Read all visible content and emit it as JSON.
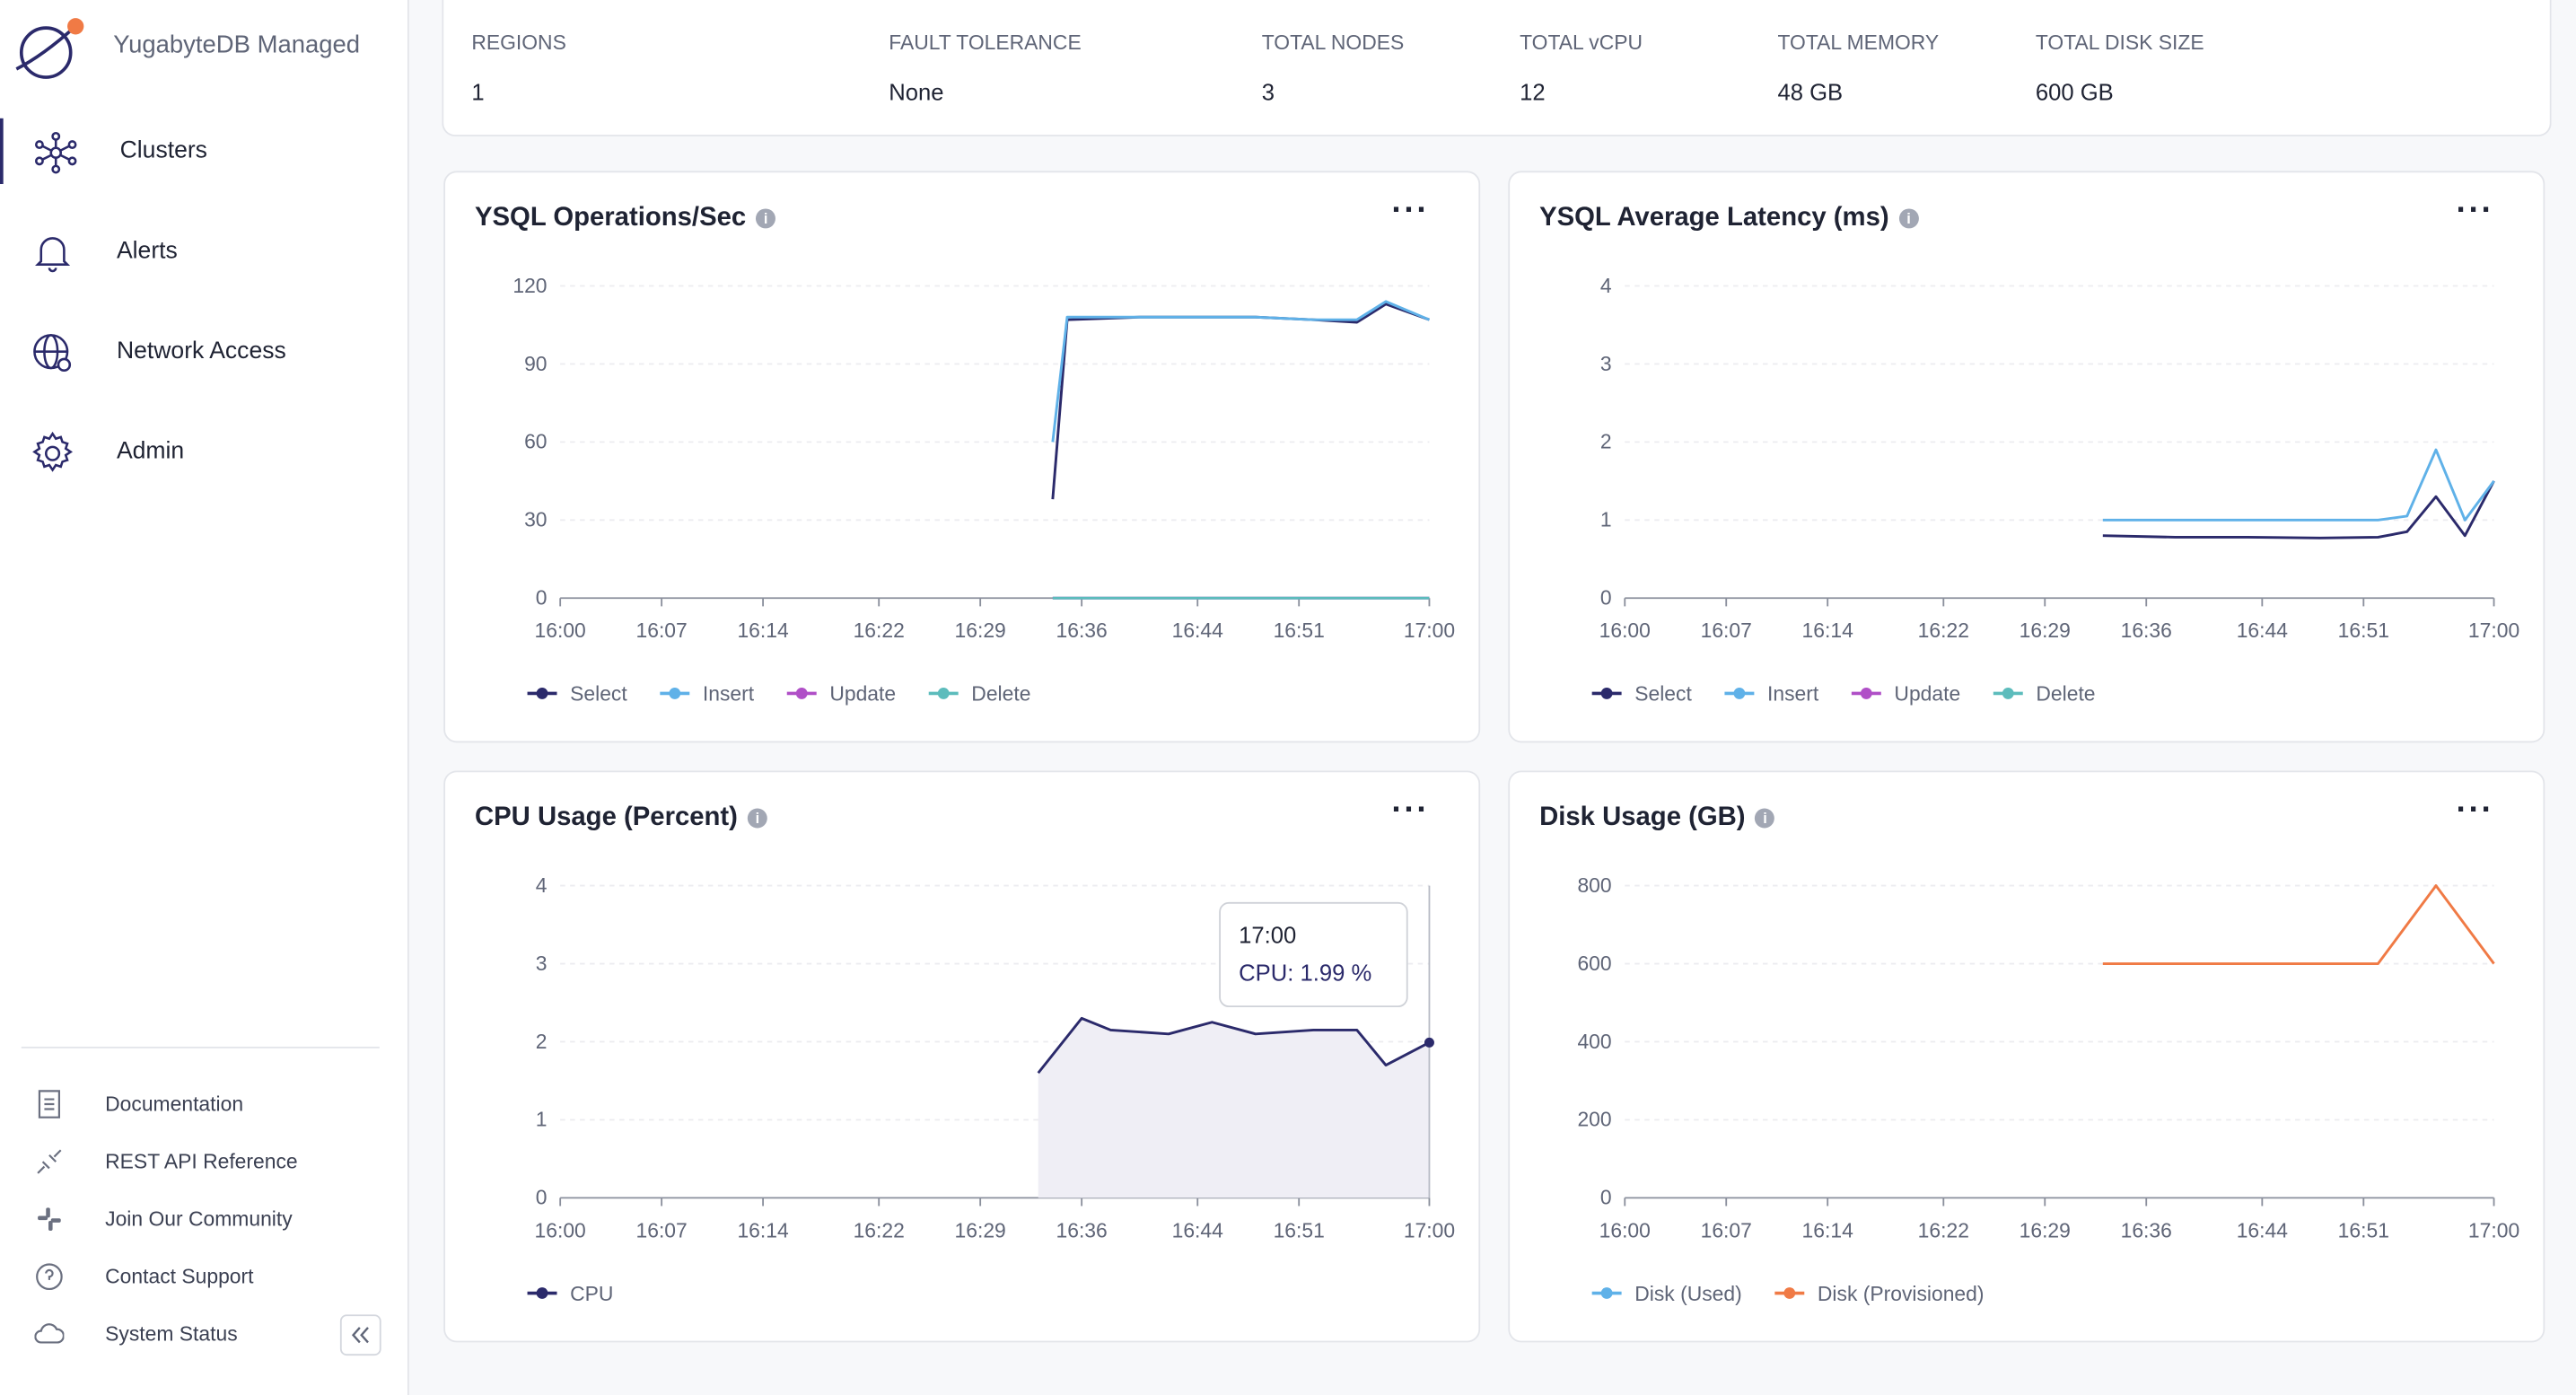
{
  "sidebar": {
    "brand": "YugabyteDB Managed",
    "nav": [
      "Clusters",
      "Alerts",
      "Network Access",
      "Admin"
    ],
    "links": [
      "Documentation",
      "REST API Reference",
      "Join Our Community",
      "Contact Support",
      "System Status"
    ]
  },
  "summary": [
    {
      "label": "REGIONS",
      "value": 1
    },
    {
      "label": "FAULT TOLERANCE",
      "value": "None"
    },
    {
      "label": "TOTAL NODES",
      "value": 3
    },
    {
      "label": "TOTAL vCPU",
      "value": 12
    },
    {
      "label": "TOTAL MEMORY",
      "value": "48 GB"
    },
    {
      "label": "TOTAL DISK SIZE",
      "value": "600 GB"
    }
  ],
  "chart_data": [
    {
      "type": "line",
      "title": "YSQL Operations/Sec",
      "x": [
        "16:34",
        "16:35",
        "16:40",
        "16:44",
        "16:48",
        "16:52",
        "16:55",
        "16:57",
        "17:00"
      ],
      "series": [
        {
          "name": "Select",
          "color": "#2b2a6b",
          "values": [
            38,
            107,
            108,
            108,
            108,
            107,
            106,
            113,
            107
          ]
        },
        {
          "name": "Insert",
          "color": "#5fb1e8",
          "values": [
            60,
            108,
            108,
            108,
            108,
            107,
            107,
            114,
            107
          ]
        },
        {
          "name": "Update",
          "color": "#b04fc7",
          "values": [
            0,
            0,
            0,
            0,
            0,
            0,
            0,
            0,
            0
          ]
        },
        {
          "name": "Delete",
          "color": "#5cbcbc",
          "values": [
            0,
            0,
            0,
            0,
            0,
            0,
            0,
            0,
            0
          ]
        }
      ],
      "xlim": [
        "16:00",
        "17:00"
      ],
      "xticks": [
        "16:00",
        "16:07",
        "16:14",
        "16:22",
        "16:29",
        "16:36",
        "16:44",
        "16:51",
        "17:00"
      ],
      "ylim": [
        0,
        120
      ],
      "yticks": [
        0,
        30,
        60,
        90,
        120
      ],
      "grid": true,
      "legend": "bottom"
    },
    {
      "type": "line",
      "title": "YSQL Average Latency (ms)",
      "x": [
        "16:33",
        "16:38",
        "16:43",
        "16:48",
        "16:52",
        "16:54",
        "16:56",
        "16:58",
        "17:00"
      ],
      "series": [
        {
          "name": "Select",
          "color": "#2b2a6b",
          "values": [
            0.8,
            0.78,
            0.78,
            0.77,
            0.78,
            0.85,
            1.3,
            0.8,
            1.5
          ]
        },
        {
          "name": "Insert",
          "color": "#5fb1e8",
          "values": [
            1,
            1,
            1,
            1,
            1,
            1.05,
            1.9,
            1,
            1.5
          ]
        },
        {
          "name": "Update",
          "color": "#b04fc7",
          "values": [
            null,
            null,
            null,
            null,
            null,
            null,
            null,
            null,
            null
          ]
        },
        {
          "name": "Delete",
          "color": "#5cbcbc",
          "values": [
            null,
            null,
            null,
            null,
            null,
            null,
            null,
            null,
            null
          ]
        }
      ],
      "xlim": [
        "16:00",
        "17:00"
      ],
      "xticks": [
        "16:00",
        "16:07",
        "16:14",
        "16:22",
        "16:29",
        "16:36",
        "16:44",
        "16:51",
        "17:00"
      ],
      "ylim": [
        0,
        4
      ],
      "yticks": [
        0,
        1,
        2,
        3,
        4
      ],
      "grid": true,
      "legend": "bottom"
    },
    {
      "type": "area",
      "title": "CPU Usage (Percent)",
      "x": [
        "16:33",
        "16:36",
        "16:38",
        "16:42",
        "16:45",
        "16:48",
        "16:52",
        "16:55",
        "16:57",
        "17:00"
      ],
      "series": [
        {
          "name": "CPU",
          "color": "#2b2a6b",
          "values": [
            1.6,
            2.3,
            2.15,
            2.1,
            2.25,
            2.1,
            2.15,
            2.15,
            1.7,
            1.99
          ]
        }
      ],
      "tooltip": {
        "title": "17:00",
        "label": "CPU: 1.99 %"
      },
      "xlim": [
        "16:00",
        "17:00"
      ],
      "xticks": [
        "16:00",
        "16:07",
        "16:14",
        "16:22",
        "16:29",
        "16:36",
        "16:44",
        "16:51",
        "17:00"
      ],
      "ylim": [
        0,
        4
      ],
      "yticks": [
        0,
        1,
        2,
        3,
        4
      ],
      "grid": true,
      "legend": "bottom"
    },
    {
      "type": "line",
      "title": "Disk Usage (GB)",
      "x": [
        "16:33",
        "16:52",
        "16:56",
        "17:00"
      ],
      "series": [
        {
          "name": "Disk (Used)",
          "color": "#5fb1e8",
          "values": [
            null,
            null,
            null,
            null
          ]
        },
        {
          "name": "Disk (Provisioned)",
          "color": "#f07a45",
          "values": [
            600,
            600,
            800,
            600
          ]
        }
      ],
      "xlim": [
        "16:00",
        "17:00"
      ],
      "xticks": [
        "16:00",
        "16:07",
        "16:14",
        "16:22",
        "16:29",
        "16:36",
        "16:44",
        "16:51",
        "17:00"
      ],
      "ylim": [
        0,
        800
      ],
      "yticks": [
        0,
        200,
        400,
        600,
        800
      ],
      "grid": true,
      "legend": "bottom"
    }
  ]
}
